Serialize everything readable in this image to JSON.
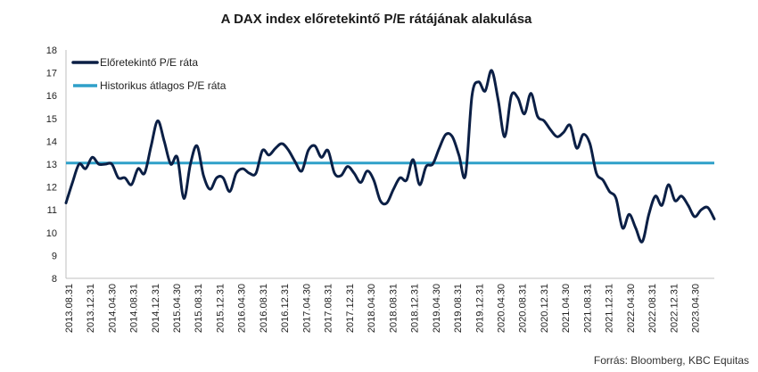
{
  "chart_data": {
    "type": "line",
    "title": "A DAX index előretekintő P/E rátájának alakulása",
    "xlabel": "",
    "ylabel": "",
    "ylim": [
      8,
      18
    ],
    "yticks": [
      8,
      9,
      10,
      11,
      12,
      13,
      14,
      15,
      16,
      17,
      18
    ],
    "grid": false,
    "legend_position": "top-left",
    "source": "Forrás: Bloomberg, KBC Equitas",
    "x_tick_labels": [
      "2013.08.31",
      "2013.12.31",
      "2014.04.30",
      "2014.08.31",
      "2014.12.31",
      "2015.04.30",
      "2015.08.31",
      "2015.12.31",
      "2016.04.30",
      "2016.08.31",
      "2016.12.31",
      "2017.04.30",
      "2017.08.31",
      "2017.12.31",
      "2018.04.30",
      "2018.08.31",
      "2018.12.31",
      "2019.04.30",
      "2019.08.31",
      "2019.12.31",
      "2020.04.30",
      "2020.08.31",
      "2020.12.31",
      "2021.04.30",
      "2021.08.31",
      "2021.12.31",
      "2022.04.30",
      "2022.08.31",
      "2022.12.31",
      "2023.04.30"
    ],
    "series": [
      {
        "name": "Előretekintő P/E ráta",
        "color": "#0b1f45",
        "values": [
          11.3,
          12.2,
          13.0,
          12.8,
          13.3,
          13.0,
          13.0,
          13.0,
          12.4,
          12.4,
          12.1,
          12.8,
          12.6,
          13.8,
          14.9,
          14.0,
          13.0,
          13.3,
          11.5,
          13.0,
          13.8,
          12.5,
          11.9,
          12.4,
          12.4,
          11.8,
          12.6,
          12.8,
          12.6,
          12.6,
          13.6,
          13.4,
          13.7,
          13.9,
          13.6,
          13.1,
          12.7,
          13.6,
          13.8,
          13.3,
          13.6,
          12.6,
          12.5,
          12.9,
          12.6,
          12.2,
          12.7,
          12.3,
          11.4,
          11.3,
          11.9,
          12.4,
          12.3,
          13.2,
          12.1,
          12.9,
          13.0,
          13.7,
          14.3,
          14.2,
          13.4,
          12.5,
          16.0,
          16.6,
          16.2,
          17.1,
          15.8,
          14.2,
          16.0,
          15.9,
          15.2,
          16.1,
          15.1,
          14.9,
          14.5,
          14.2,
          14.4,
          14.7,
          13.7,
          14.3,
          13.9,
          12.6,
          12.3,
          11.8,
          11.5,
          10.2,
          10.8,
          10.2,
          9.6,
          10.8,
          11.6,
          11.2,
          12.1,
          11.4,
          11.6,
          11.2,
          10.7,
          11.0,
          11.1,
          10.6
        ]
      },
      {
        "name": "Historikus átlagos P/E ráta",
        "color": "#2fa0c9",
        "values": [
          13.05,
          13.05
        ]
      }
    ]
  }
}
